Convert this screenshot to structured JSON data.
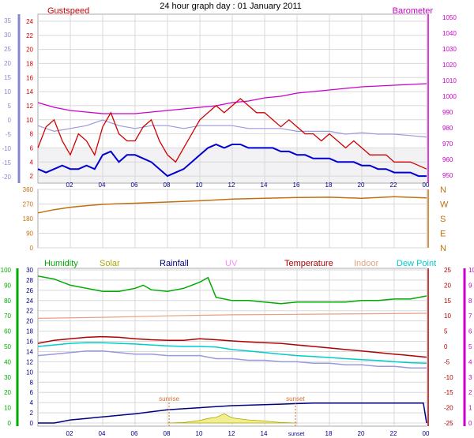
{
  "title": "24 hour graph day : 01 January 2011",
  "colors": {
    "gust": "#d00000",
    "wind": "#0000d0",
    "barometer": "#cc00cc",
    "temperature": "#b00000",
    "humidity": "#00aa00",
    "solar": "#aaaa00",
    "rainfall": "#000080",
    "uv": "#ff88ff",
    "indoor": "#e8a080",
    "dewpoint": "#00cccc",
    "windchill": "#9999dd",
    "direction": "#c07010",
    "left_axis_1": "#8888cc",
    "left_axis_3": "#00aa00",
    "right_axis_3": "#cc00cc",
    "grid": "#d8d8d8",
    "sun": "#d07030"
  },
  "chart_data": [
    {
      "type": "line",
      "name": "wind",
      "left_label": "Gustspeed",
      "right_label": "Barometer",
      "x_ticks": [
        "02",
        "04",
        "06",
        "08",
        "10",
        "12",
        "14",
        "16",
        "18",
        "20",
        "22",
        "00"
      ],
      "y_left_ticks": [
        24,
        22,
        20,
        18,
        16,
        14,
        12,
        10,
        8,
        6,
        4,
        2
      ],
      "y_left_range": [
        1,
        25
      ],
      "y_far_left_ticks": [
        35,
        30,
        25,
        20,
        15,
        10,
        5,
        0,
        -5,
        -10,
        -15,
        -20
      ],
      "y_right_ticks": [
        1050,
        1040,
        1030,
        1020,
        1010,
        1000,
        990,
        980,
        970,
        960,
        950
      ],
      "y_right_range": [
        945,
        1052
      ],
      "series": {
        "gust": {
          "x": [
            0,
            0.5,
            1,
            1.5,
            2,
            2.5,
            3,
            3.5,
            4,
            4.5,
            5,
            5.5,
            6,
            6.5,
            7,
            7.5,
            8,
            8.5,
            9,
            9.5,
            10,
            10.5,
            11,
            11.5,
            12,
            12.5,
            13,
            13.5,
            14,
            14.5,
            15,
            15.5,
            16,
            16.5,
            17,
            17.5,
            18,
            18.5,
            19,
            19.5,
            20,
            20.5,
            21,
            21.5,
            22,
            22.5,
            23,
            23.5,
            24
          ],
          "y": [
            6,
            9,
            10,
            7,
            5,
            8,
            7,
            5,
            9,
            11,
            8,
            7,
            7,
            9,
            10,
            7,
            5,
            4,
            6,
            8,
            10,
            11,
            12,
            11,
            12,
            13,
            12,
            11,
            11,
            10,
            9,
            10,
            9,
            8,
            8,
            7,
            8,
            7,
            6,
            7,
            6,
            5,
            5,
            5,
            4,
            4,
            4,
            3.5,
            3
          ]
        },
        "wind": {
          "x": [
            0,
            0.5,
            1,
            1.5,
            2,
            2.5,
            3,
            3.5,
            4,
            4.5,
            5,
            5.5,
            6,
            6.5,
            7,
            7.5,
            8,
            8.5,
            9,
            9.5,
            10,
            10.5,
            11,
            11.5,
            12,
            12.5,
            13,
            13.5,
            14,
            14.5,
            15,
            15.5,
            16,
            16.5,
            17,
            17.5,
            18,
            18.5,
            19,
            19.5,
            20,
            20.5,
            21,
            21.5,
            22,
            22.5,
            23,
            23.5,
            24
          ],
          "y": [
            3,
            2.5,
            3,
            3.5,
            3,
            3,
            3.5,
            3,
            5,
            5.5,
            4,
            5,
            5,
            4.5,
            4,
            3,
            2,
            2.5,
            3,
            4,
            5,
            6,
            6.5,
            6,
            6.5,
            6.5,
            6,
            6,
            6,
            6,
            5.5,
            5.5,
            5,
            5,
            4.5,
            4.5,
            4.5,
            4,
            4,
            4,
            3.5,
            3.5,
            3,
            3,
            2.5,
            2.5,
            2.5,
            2,
            2
          ]
        },
        "windchill": {
          "x": [
            0,
            1,
            2,
            3,
            4,
            5,
            6,
            7,
            8,
            9,
            10,
            11,
            12,
            13,
            14,
            15,
            16,
            17,
            18,
            19,
            20,
            21,
            22,
            23,
            24
          ],
          "y": [
            -2,
            -4,
            -3,
            -2,
            0,
            -2,
            -3,
            -2,
            -2,
            -3,
            -2,
            -2,
            -2,
            -3,
            -3,
            -3,
            -4,
            -4,
            -4,
            -5,
            -4.5,
            -5,
            -5,
            -5.5,
            -6
          ]
        },
        "barometer": {
          "x": [
            0,
            1,
            2,
            3,
            4,
            5,
            6,
            7,
            8,
            9,
            10,
            11,
            12,
            13,
            14,
            15,
            16,
            17,
            18,
            19,
            20,
            21,
            22,
            23,
            24
          ],
          "y": [
            996,
            993,
            991,
            990,
            989,
            989,
            989,
            990,
            991,
            992,
            993,
            994,
            996,
            997,
            999,
            1000,
            1002,
            1003,
            1004,
            1005,
            1006,
            1006.5,
            1007,
            1007.5,
            1008
          ]
        }
      }
    },
    {
      "type": "line",
      "name": "direction",
      "y_left_ticks": [
        360,
        270,
        180,
        90,
        0
      ],
      "y_left_range": [
        0,
        360
      ],
      "y_right_ticks": [
        "N",
        "W",
        "S",
        "E",
        "N"
      ],
      "series": {
        "direction": {
          "x": [
            0,
            1,
            2,
            3,
            4,
            6,
            8,
            10,
            12,
            14,
            16,
            18,
            20,
            22,
            24
          ],
          "y": [
            215,
            235,
            250,
            260,
            268,
            275,
            282,
            290,
            300,
            305,
            310,
            312,
            305,
            315,
            308
          ]
        }
      }
    },
    {
      "type": "line",
      "name": "environment",
      "legend": [
        "Humidity",
        "Solar",
        "Rainfall",
        "UV",
        "Temperature",
        "Indoor",
        "Dew Point"
      ],
      "x_ticks": [
        "02",
        "04",
        "06",
        "08",
        "10",
        "12",
        "14",
        "sunset",
        "18",
        "20",
        "22",
        "00"
      ],
      "sun_labels": {
        "sunrise": "sunrise",
        "sunset": "sunset"
      },
      "sunrise_hour": 8.1,
      "sunset_hour": 15.9,
      "y_far_left_ticks": [
        100,
        90,
        80,
        70,
        60,
        50,
        40,
        30,
        20,
        10,
        0
      ],
      "y_left_ticks": [
        30,
        28,
        26,
        24,
        22,
        20,
        18,
        16,
        14,
        12,
        10,
        8,
        6,
        4,
        2,
        0
      ],
      "y_right_ticks": [
        25,
        20,
        15,
        10,
        5,
        0,
        -5,
        -10,
        -15,
        -20,
        -25
      ],
      "y_far_right_ticks": [
        10,
        9,
        8,
        7,
        6,
        5,
        4,
        3,
        2,
        1,
        0
      ],
      "series": {
        "humidity": {
          "x": [
            0,
            1,
            2,
            3,
            4,
            5,
            6,
            6.5,
            7,
            8,
            9,
            9.5,
            10,
            10.5,
            11,
            12,
            13,
            14,
            15,
            16,
            17,
            18,
            19,
            20,
            21,
            22,
            23,
            24
          ],
          "y": [
            96,
            94,
            90,
            88,
            86,
            86,
            88,
            90,
            87,
            86,
            88,
            90,
            92,
            95,
            82,
            80,
            80,
            79,
            78,
            79,
            79,
            79,
            79,
            80,
            80,
            81,
            81,
            83
          ]
        },
        "indoor": {
          "x": [
            0,
            4,
            8,
            12,
            16,
            20,
            24
          ],
          "y": [
            20.5,
            20.7,
            21,
            21.2,
            21.3,
            21.4,
            21.5
          ]
        },
        "temperature": {
          "x": [
            0,
            1,
            2,
            3,
            4,
            5,
            6,
            7,
            8,
            9,
            10,
            11,
            12,
            13,
            14,
            15,
            16,
            17,
            18,
            19,
            20,
            21,
            22,
            23,
            24
          ],
          "y": [
            1,
            2,
            2.5,
            3,
            3.2,
            3,
            2.5,
            2.2,
            2,
            2,
            2.5,
            2.2,
            1.8,
            1.5,
            1.2,
            1,
            0.5,
            0,
            -0.5,
            -1,
            -1.5,
            -2,
            -2.5,
            -3,
            -3.5
          ]
        },
        "dewpoint": {
          "x": [
            0,
            1,
            2,
            3,
            4,
            5,
            6,
            7,
            8,
            9,
            10,
            11,
            12,
            13,
            14,
            15,
            16,
            17,
            18,
            19,
            20,
            21,
            22,
            23,
            24
          ],
          "y": [
            0,
            0.5,
            1,
            1.2,
            1.2,
            1,
            0.8,
            0.5,
            0.2,
            0,
            0,
            -0.2,
            -1,
            -1.5,
            -2,
            -2.5,
            -3,
            -3.3,
            -3.6,
            -4,
            -4.3,
            -4.6,
            -5,
            -5.3,
            -5.5
          ]
        },
        "windchill": {
          "x": [
            0,
            1,
            2,
            3,
            4,
            5,
            6,
            7,
            8,
            9,
            10,
            11,
            12,
            13,
            14,
            15,
            16,
            17,
            18,
            19,
            20,
            21,
            22,
            23,
            24
          ],
          "y": [
            -3,
            -2.5,
            -2,
            -1.5,
            -1.5,
            -2,
            -2.5,
            -2.5,
            -3,
            -3,
            -3,
            -4,
            -4,
            -4.5,
            -4.5,
            -5,
            -5,
            -5.5,
            -5.5,
            -6,
            -6,
            -6.5,
            -6.5,
            -7,
            -7
          ]
        },
        "rainfall": {
          "x": [
            0,
            1,
            1.5,
            2,
            3,
            4,
            5,
            6,
            7,
            8,
            9,
            10,
            11,
            12,
            13,
            14,
            15,
            16,
            17,
            18,
            19,
            20,
            21,
            22,
            23,
            23.8,
            24
          ],
          "y": [
            0,
            0,
            0.3,
            0.6,
            0.9,
            1.2,
            1.5,
            1.8,
            2.2,
            2.6,
            2.8,
            3,
            3.2,
            3.4,
            3.5,
            3.6,
            3.7,
            3.8,
            3.9,
            3.9,
            3.9,
            3.9,
            3.9,
            3.9,
            3.9,
            3.9,
            0
          ]
        },
        "solar": {
          "x": [
            8,
            9,
            10,
            10.5,
            11,
            11.5,
            12,
            13,
            14,
            15,
            16
          ],
          "y": [
            0,
            0.1,
            0.5,
            0.9,
            1.1,
            1.8,
            1,
            0.6,
            0.4,
            0.1,
            0
          ]
        }
      }
    }
  ]
}
